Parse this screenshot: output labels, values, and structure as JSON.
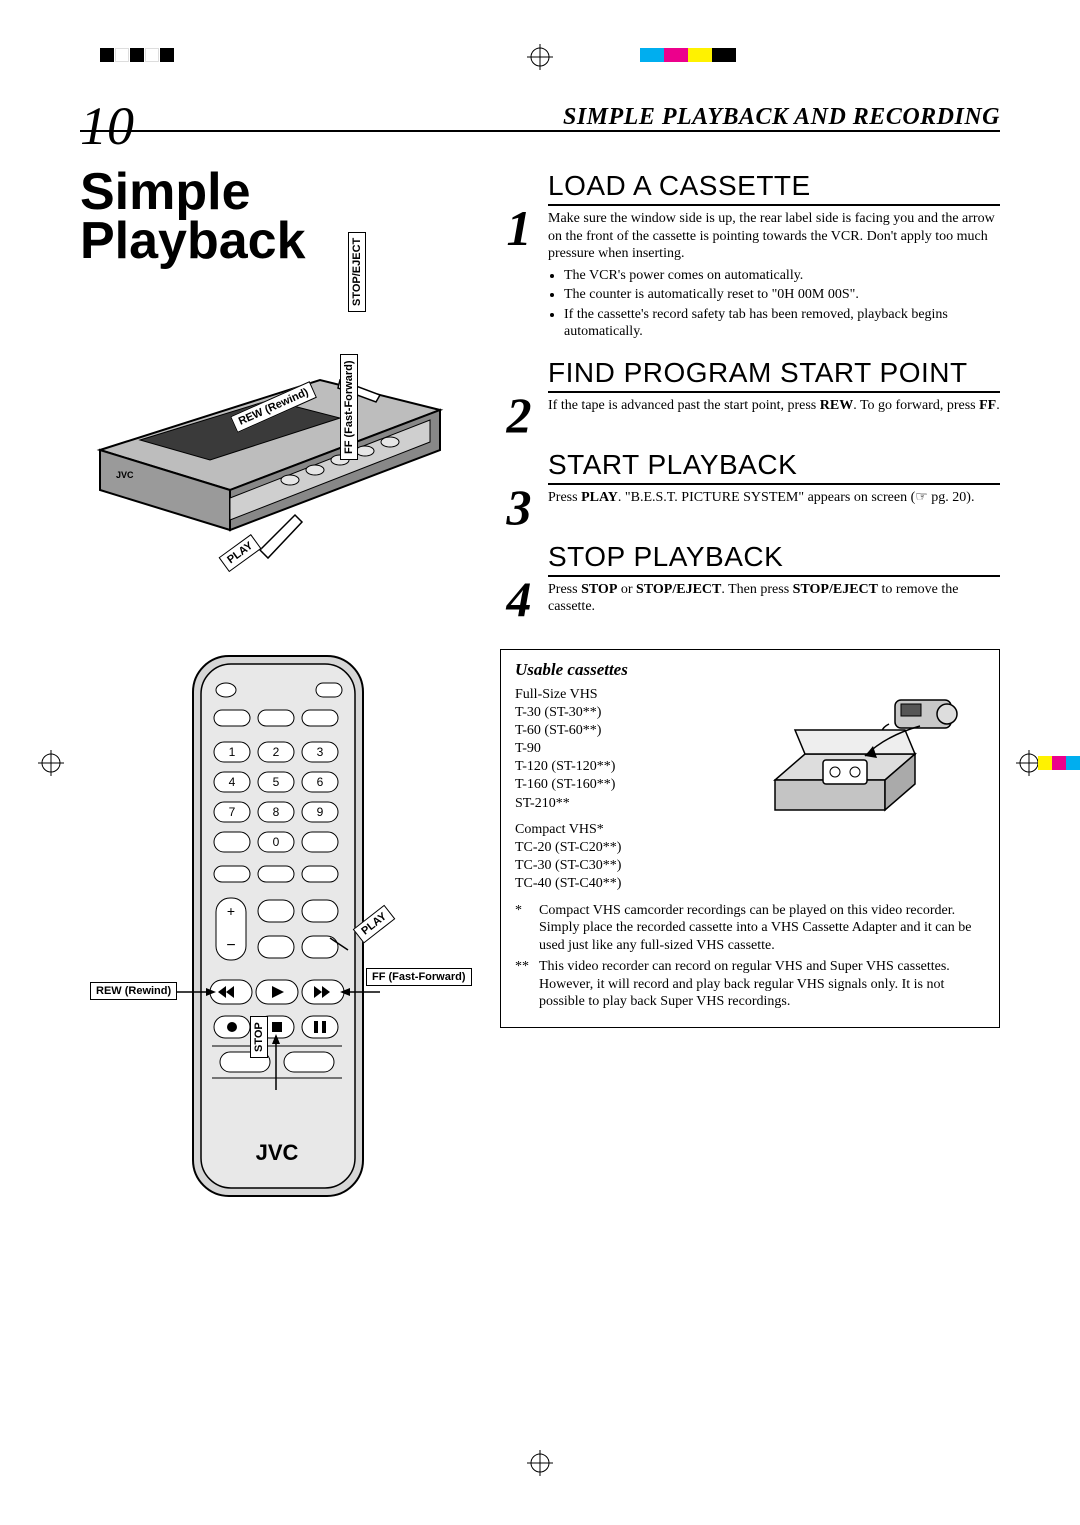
{
  "page_number": "10",
  "chapter_title": "SIMPLE PLAYBACK AND RECORDING",
  "section_title_line1": "Simple",
  "section_title_line2": "Playback",
  "steps": [
    {
      "num": "1",
      "heading": "LOAD A CASSETTE",
      "body": "Make sure the window side is up, the rear label side is facing you and the arrow on the front of the cassette is pointing towards the VCR. Don't apply too much pressure when inserting.",
      "bullets": [
        "The VCR's power comes on automatically.",
        "The counter is automatically reset to \"0H 00M 00S\".",
        "If the cassette's record safety tab has been removed, playback begins automatically."
      ]
    },
    {
      "num": "2",
      "heading": "FIND PROGRAM START POINT",
      "body_html": "If the tape is advanced past the start point, press <b>REW</b>. To go forward, press <b>FF</b>."
    },
    {
      "num": "3",
      "heading": "START PLAYBACK",
      "body_html": "Press <b>PLAY</b>. \"B.E.S.T. PICTURE SYSTEM\" appears on screen (☞ pg. 20)."
    },
    {
      "num": "4",
      "heading": "STOP PLAYBACK",
      "body_html": "Press <b>STOP</b> or <b>STOP/EJECT</b>. Then press <b>STOP/EJECT</b> to remove the cassette."
    }
  ],
  "cassettes": {
    "heading": "Usable cassettes",
    "fullsize_label": "Full-Size VHS",
    "fullsize_items": [
      "T-30 (ST-30**)",
      "T-60 (ST-60**)",
      "T-90",
      "T-120 (ST-120**)",
      "T-160 (ST-160**)",
      "ST-210**"
    ],
    "compact_label": "Compact VHS*",
    "compact_items": [
      "TC-20 (ST-C20**)",
      "TC-30 (ST-C30**)",
      "TC-40 (ST-C40**)"
    ],
    "note1": "Compact VHS camcorder recordings can be played on this video recorder. Simply place the recorded cassette into a VHS Cassette Adapter and it can be used just like any full-sized VHS cassette.",
    "note2": "This video recorder can record on regular VHS and Super VHS cassettes. However, it will record and play back regular VHS signals only. It is not possible to play back Super VHS recordings."
  },
  "vcr_callouts": {
    "stop_eject": "STOP/EJECT",
    "rew": "REW (Rewind)",
    "play": "PLAY",
    "ff": "FF (Fast-Forward)"
  },
  "remote_callouts": {
    "play": "PLAY",
    "ff": "FF (Fast-Forward)",
    "rew": "REW (Rewind)",
    "stop": "STOP"
  },
  "remote_brand": "JVC",
  "color_bar": [
    "#000000",
    "#ffffff",
    "#000000",
    "#ffffff",
    "#000000",
    "#00aeef",
    "#ec008c",
    "#fff200",
    "#000000"
  ],
  "color_bar_right": [
    "#fff200",
    "#ec008c",
    "#00aeef",
    "#009245",
    "#ed1c24",
    "#2e3192"
  ]
}
